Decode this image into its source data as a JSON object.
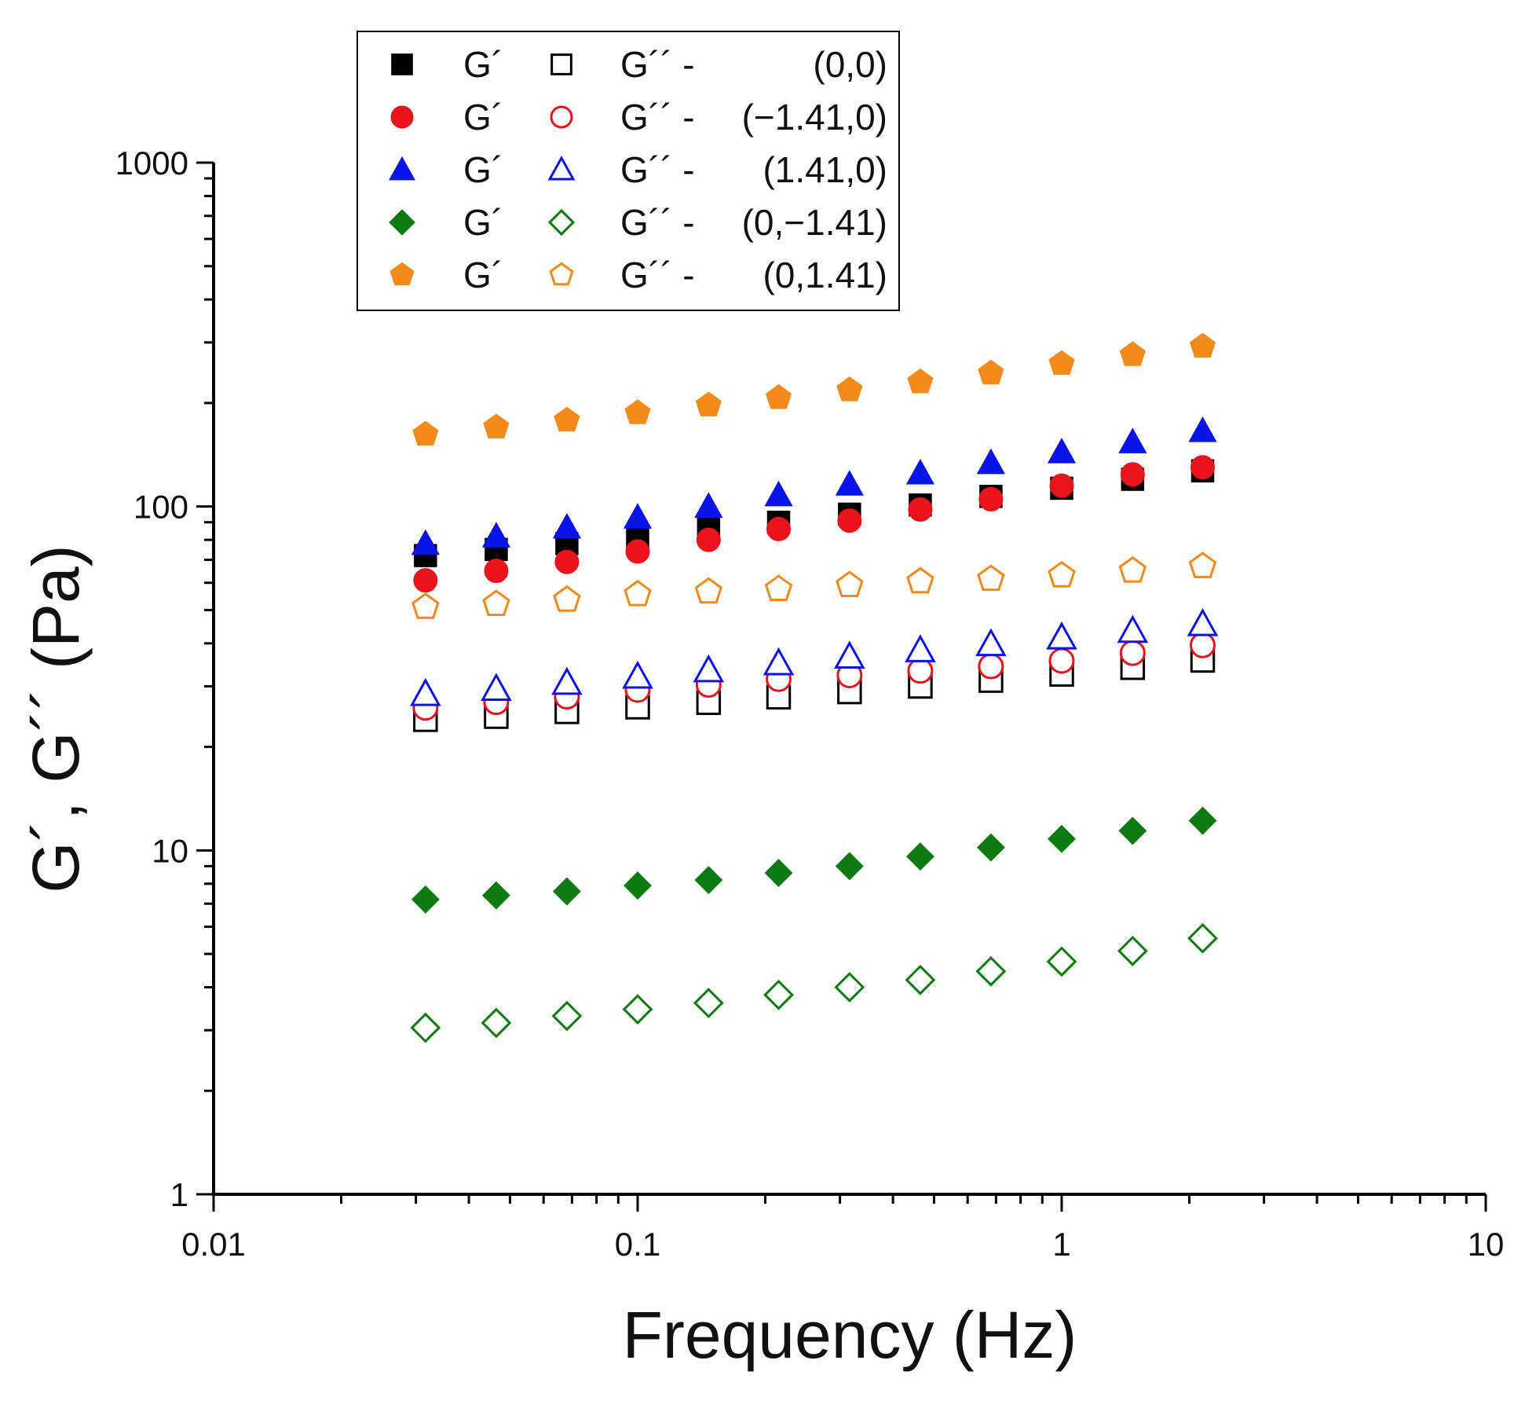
{
  "chart_data": {
    "type": "scatter",
    "xlabel": "Frequency (Hz)",
    "ylabel": "G´, G´´ (Pa)",
    "xscale": "log",
    "yscale": "log",
    "xlim": [
      0.01,
      10
    ],
    "ylim": [
      1,
      1000
    ],
    "xticks": [
      {
        "value": 0.01,
        "label": "0.01"
      },
      {
        "value": 0.1,
        "label": "0.1"
      },
      {
        "value": 1,
        "label": "1"
      },
      {
        "value": 10,
        "label": "10"
      }
    ],
    "yticks": [
      {
        "value": 1,
        "label": "1"
      },
      {
        "value": 10,
        "label": "10"
      },
      {
        "value": 100,
        "label": "100"
      },
      {
        "value": 1000,
        "label": "1000"
      }
    ],
    "grid": false,
    "legend_position": "top-left",
    "x": [
      0.0316,
      0.0464,
      0.0681,
      0.1,
      0.147,
      0.215,
      0.316,
      0.464,
      0.681,
      1.0,
      1.47,
      2.15
    ],
    "series": [
      {
        "group": "(0,0)",
        "label": "G´",
        "marker": "square",
        "filled": true,
        "color": "#000000",
        "values": [
          72,
          75,
          78,
          82,
          86,
          90,
          95,
          101,
          107,
          113,
          120,
          127
        ]
      },
      {
        "group": "(0,0)",
        "label": "G´´ -",
        "marker": "square",
        "filled": false,
        "color": "#000000",
        "values": [
          24,
          24.5,
          25.3,
          26.1,
          26.9,
          27.9,
          28.9,
          30.0,
          31.2,
          32.5,
          34.0,
          35.7
        ]
      },
      {
        "group": "(−1.41,0)",
        "label": "G´",
        "marker": "circle",
        "filled": true,
        "color": "#e8131b",
        "values": [
          61,
          65,
          69,
          74,
          80,
          86,
          91,
          98,
          105,
          115,
          124,
          130
        ]
      },
      {
        "group": "(−1.41,0)",
        "label": "G´´ -",
        "marker": "circle",
        "filled": false,
        "color": "#e8131b",
        "values": [
          26,
          27,
          28,
          29.3,
          30.3,
          31.5,
          32.3,
          33.3,
          34.3,
          35.6,
          37.5,
          39.5
        ]
      },
      {
        "group": "(1.41,0)",
        "label": "G´",
        "marker": "triangle",
        "filled": true,
        "color": "#0a14e6",
        "values": [
          78,
          82,
          87,
          93,
          100,
          108,
          116,
          125,
          134,
          144,
          154,
          166
        ]
      },
      {
        "group": "(1.41,0)",
        "label": "G´´ -",
        "marker": "triangle",
        "filled": false,
        "color": "#0a14e6",
        "values": [
          28.5,
          29.5,
          30.7,
          32,
          33.4,
          35,
          36.6,
          38.2,
          39.8,
          41.6,
          43.5,
          45.5
        ]
      },
      {
        "group": "(0,−1.41)",
        "label": "G´",
        "marker": "diamond",
        "filled": true,
        "color": "#0e7a12",
        "values": [
          7.2,
          7.4,
          7.6,
          7.9,
          8.2,
          8.6,
          9.0,
          9.6,
          10.2,
          10.8,
          11.4,
          12.2
        ]
      },
      {
        "group": "(0,−1.41)",
        "label": "G´´ -",
        "marker": "diamond",
        "filled": false,
        "color": "#0e7a12",
        "values": [
          3.05,
          3.15,
          3.3,
          3.45,
          3.6,
          3.8,
          4.0,
          4.2,
          4.45,
          4.75,
          5.1,
          5.55
        ]
      },
      {
        "group": "(0,1.41)",
        "label": "G´",
        "marker": "pentagon",
        "filled": true,
        "color": "#f28a1c",
        "values": [
          162,
          170,
          178,
          187,
          197,
          207,
          218,
          230,
          244,
          260,
          276,
          292
        ]
      },
      {
        "group": "(0,1.41)",
        "label": "G´´ -",
        "marker": "pentagon",
        "filled": false,
        "color": "#f28a1c",
        "values": [
          51,
          52,
          53.5,
          55.5,
          56.5,
          57.5,
          59,
          60.5,
          61.5,
          63,
          65,
          67
        ]
      }
    ],
    "legend": [
      {
        "g1": "G´",
        "g2": "G´´ -",
        "sample": "(0,0)",
        "marker": "square",
        "color": "#000000"
      },
      {
        "g1": "G´",
        "g2": "G´´ -",
        "sample": "(−1.41,0)",
        "marker": "circle",
        "color": "#e8131b"
      },
      {
        "g1": "G´",
        "g2": "G´´ -",
        "sample": "(1.41,0)",
        "marker": "triangle",
        "color": "#0a14e6"
      },
      {
        "g1": "G´",
        "g2": "G´´ -",
        "sample": "(0,−1.41)",
        "marker": "diamond",
        "color": "#0e7a12"
      },
      {
        "g1": "G´",
        "g2": "G´´ -",
        "sample": "(0,1.41)",
        "marker": "pentagon",
        "color": "#f28a1c"
      }
    ]
  }
}
